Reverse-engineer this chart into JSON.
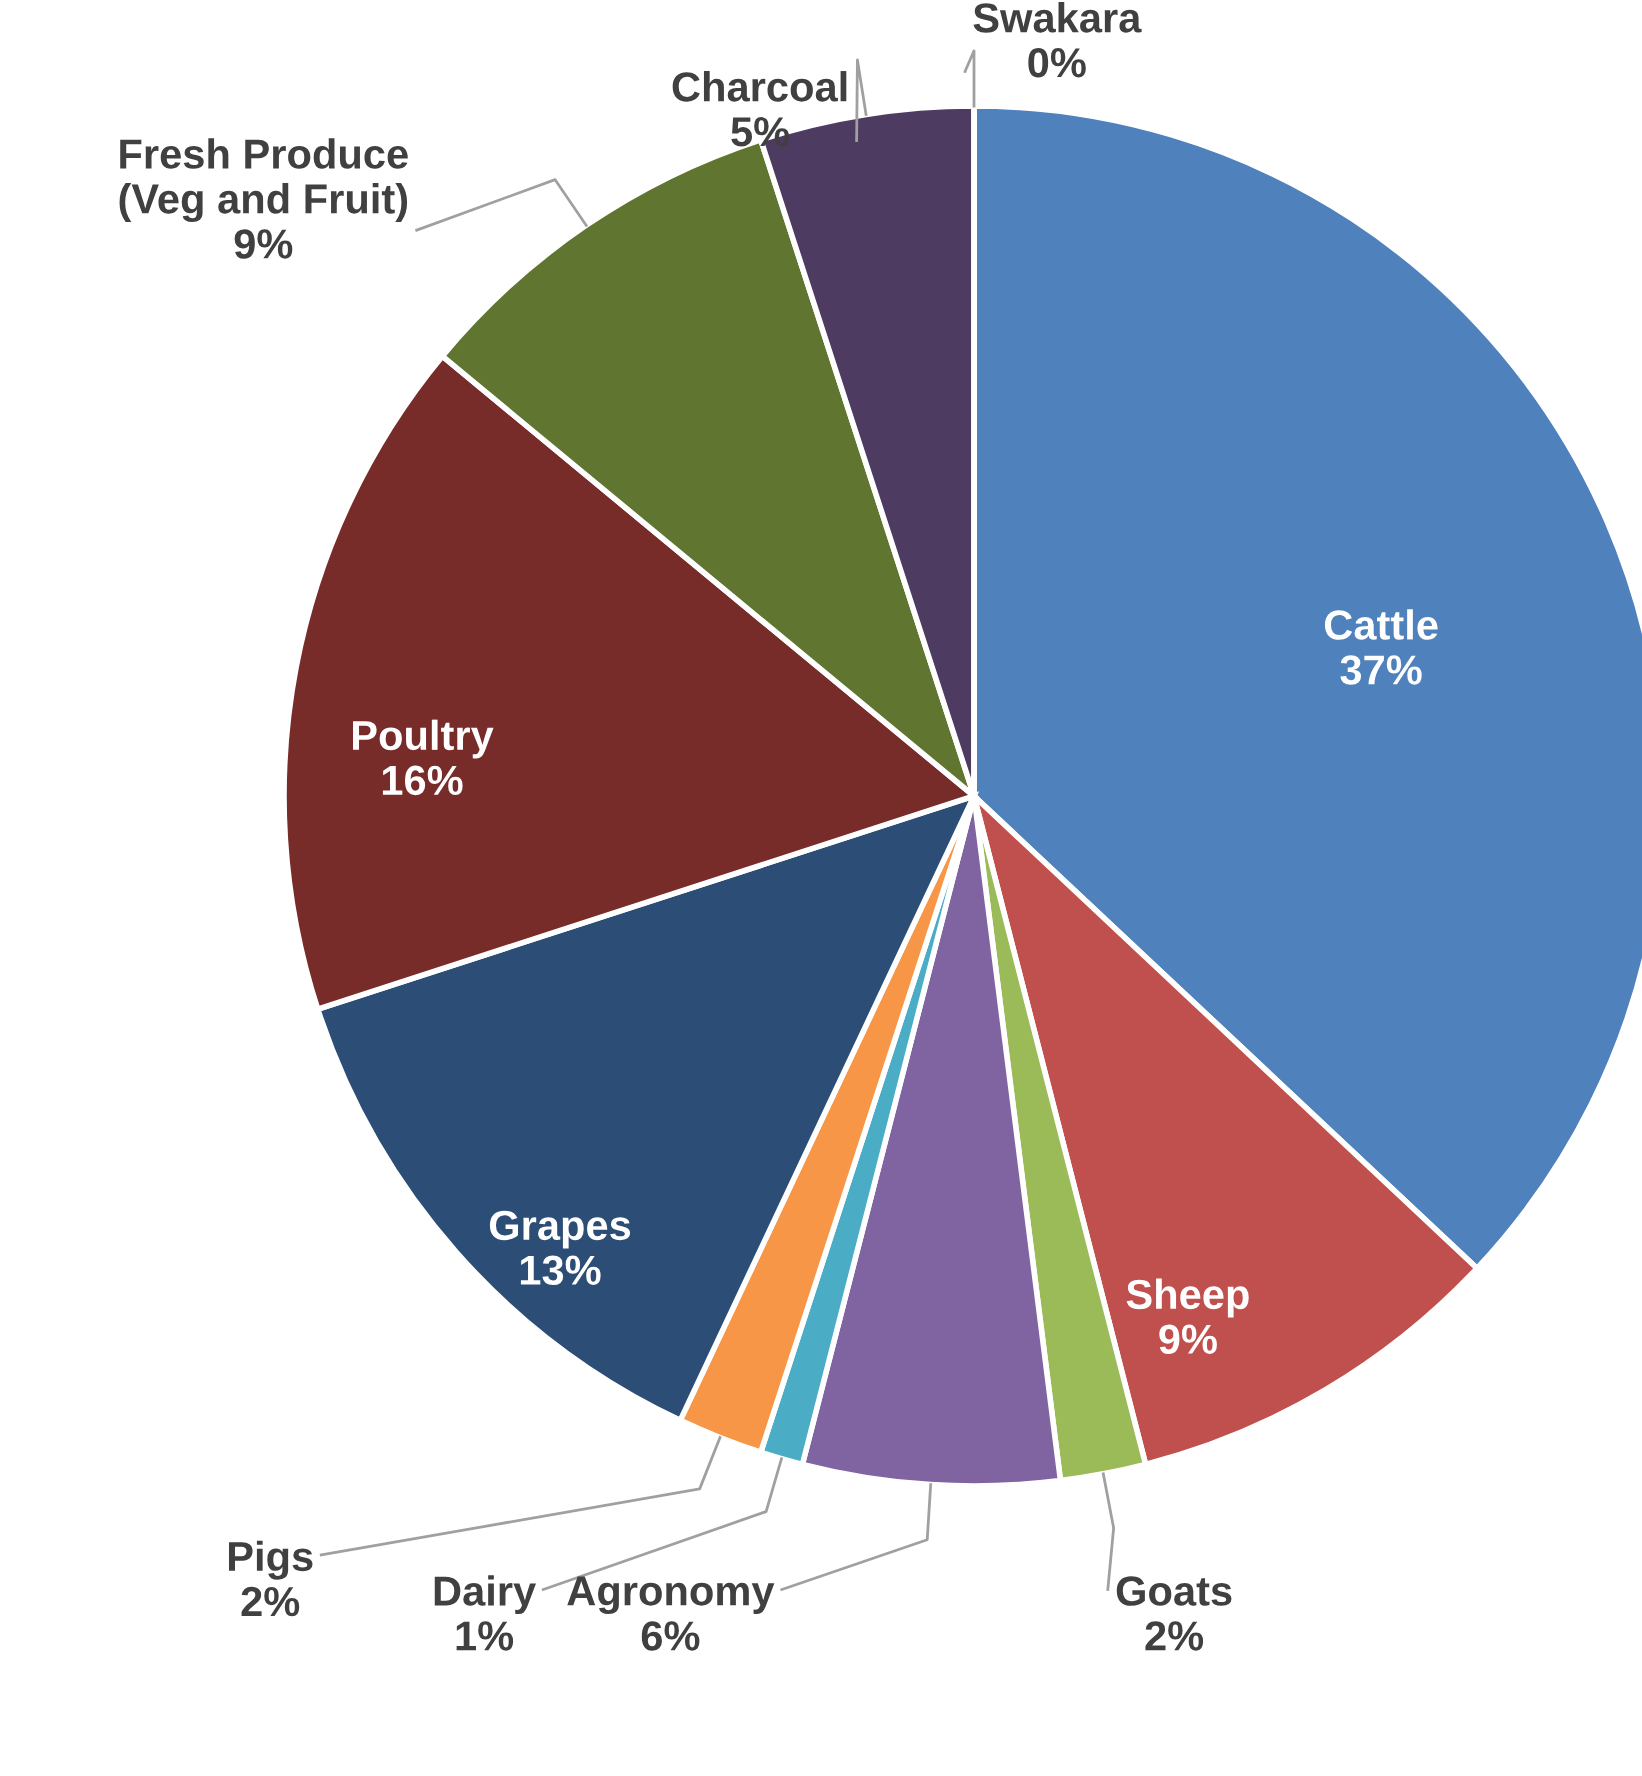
{
  "chart_data": {
    "type": "pie",
    "categories": [
      "Cattle",
      "Sheep",
      "Goats",
      "Agronomy",
      "Dairy",
      "Pigs",
      "Grapes",
      "Poultry",
      "Fresh Produce\n(Veg and Fruit)",
      "Charcoal",
      "Swakara"
    ],
    "values": [
      37,
      9,
      2,
      6,
      1,
      2,
      13,
      16,
      9,
      5,
      0
    ],
    "value_labels": [
      "37%",
      "9%",
      "2%",
      "6%",
      "1%",
      "2%",
      "13%",
      "16%",
      "9%",
      "5%",
      "0%"
    ],
    "colors": [
      "#4f81bd",
      "#c0504d",
      "#9bbb59",
      "#8064a2",
      "#4bacc6",
      "#f79646",
      "#2c4d75",
      "#772c2a",
      "#5f7530",
      "#4d3b62",
      "#2c8fa3"
    ],
    "legend": false
  }
}
